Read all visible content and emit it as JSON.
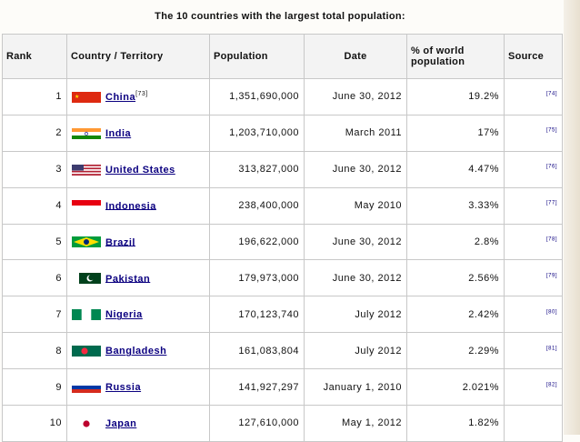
{
  "caption": "The 10 countries with the largest total population:",
  "headers": {
    "rank": "Rank",
    "country": "Country / Territory",
    "population": "Population",
    "date": "Date",
    "percent": "% of world population",
    "source": "Source"
  },
  "rows": [
    {
      "rank": "1",
      "country": "China",
      "country_ref": "[73]",
      "population": "1,351,690,000",
      "date": "June 30, 2012",
      "percent": "19.2%",
      "source": "[74]",
      "flag": "china-flag-icon"
    },
    {
      "rank": "2",
      "country": "India",
      "country_ref": "",
      "population": "1,203,710,000",
      "date": "March 2011",
      "percent": "17%",
      "source": "[75]",
      "flag": "india-flag-icon"
    },
    {
      "rank": "3",
      "country": "United States",
      "country_ref": "",
      "population": "313,827,000",
      "date": "June 30, 2012",
      "percent": "4.47%",
      "source": "[76]",
      "flag": "usa-flag-icon"
    },
    {
      "rank": "4",
      "country": "Indonesia",
      "country_ref": "",
      "population": "238,400,000",
      "date": "May 2010",
      "percent": "3.33%",
      "source": "[77]",
      "flag": "indonesia-flag-icon"
    },
    {
      "rank": "5",
      "country": "Brazil",
      "country_ref": "",
      "population": "196,622,000",
      "date": "June 30, 2012",
      "percent": "2.8%",
      "source": "[78]",
      "flag": "brazil-flag-icon"
    },
    {
      "rank": "6",
      "country": "Pakistan",
      "country_ref": "",
      "population": "179,973,000",
      "date": "June 30, 2012",
      "percent": "2.56%",
      "source": "[79]",
      "flag": "pakistan-flag-icon"
    },
    {
      "rank": "7",
      "country": "Nigeria",
      "country_ref": "",
      "population": "170,123,740",
      "date": "July 2012",
      "percent": "2.42%",
      "source": "[80]",
      "flag": "nigeria-flag-icon"
    },
    {
      "rank": "8",
      "country": "Bangladesh",
      "country_ref": "",
      "population": "161,083,804",
      "date": "July 2012",
      "percent": "2.29%",
      "source": "[81]",
      "flag": "bangladesh-flag-icon"
    },
    {
      "rank": "9",
      "country": "Russia",
      "country_ref": "",
      "population": "141,927,297",
      "date": "January 1, 2010",
      "percent": "2.021%",
      "source": "[82]",
      "flag": "russia-flag-icon"
    },
    {
      "rank": "10",
      "country": "Japan",
      "country_ref": "",
      "population": "127,610,000",
      "date": "May 1, 2012",
      "percent": "1.82%",
      "source": "",
      "flag": "japan-flag-icon"
    }
  ]
}
